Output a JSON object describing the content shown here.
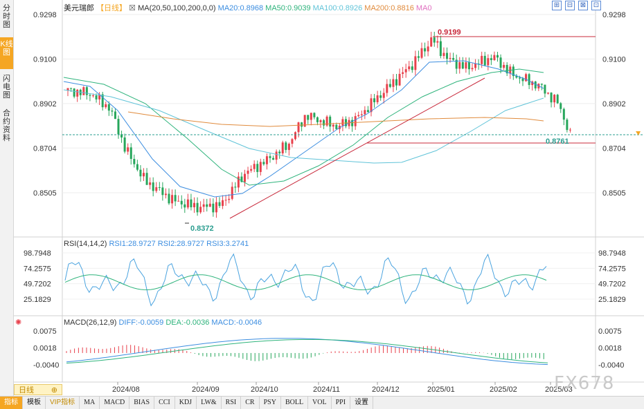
{
  "sidebar": {
    "tabs": [
      {
        "label": "分时图",
        "active": false
      },
      {
        "label": "K线图",
        "active": true
      },
      {
        "label": "闪电图",
        "active": false
      },
      {
        "label": "合约资料",
        "active": false
      }
    ]
  },
  "header": {
    "symbol": "美元瑞郎",
    "period_label": "【日线】",
    "ma_label": "MA(20,50,100,200,0,0)",
    "ma20": "MA20:0.8968",
    "ma50": "MA50:0.9039",
    "ma100": "MA100:0.8926",
    "ma200": "MA200:0.8816",
    "ma0": "MA0"
  },
  "window_controls": [
    "⊞",
    "⊟",
    "⊠",
    "⊡"
  ],
  "price_axis": {
    "ticks": [
      "0.9298",
      "0.9100",
      "0.8902",
      "0.8704",
      "0.8505"
    ],
    "high_label": "0.9199",
    "low_label": "0.8372",
    "last_label": "0.8761"
  },
  "rsi": {
    "title": "RSI(14,14,2)",
    "rsi1": "RSI1:28.9727",
    "rsi2": "RSI2:28.9727",
    "rsi3": "RSI3:3.2741",
    "ticks": [
      "98.7948",
      "74.2575",
      "49.7202",
      "25.1829"
    ]
  },
  "macd": {
    "title": "MACD(26,12,9)",
    "diff": "DIFF:-0.0059",
    "dea": "DEA:-0.0036",
    "macd": "MACD:-0.0046",
    "ticks": [
      "0.0075",
      "0.0018",
      "-0.0040"
    ]
  },
  "date_axis": [
    "2024/08",
    "2024/09",
    "2024/10",
    "2024/11",
    "2024/12",
    "2025/01",
    "2025/02",
    "2025/03"
  ],
  "period_tab": {
    "label": "日线",
    "icon": "⊕"
  },
  "toolbar": [
    "指标",
    "模板",
    "VIP指标",
    "MA",
    "MACD",
    "BIAS",
    "CCI",
    "KDJ",
    "LW&",
    "RSI",
    "CR",
    "PSY",
    "BOLL",
    "VOL",
    "PPI",
    "设置"
  ],
  "watermark": "FX678",
  "colors": {
    "up": "#e8414c",
    "down": "#26a65b",
    "ma20": "#3b8de0",
    "ma50": "#2db37b",
    "ma100": "#5fc3d8",
    "ma200": "#e08a3b",
    "accent": "#f5a623"
  }
}
